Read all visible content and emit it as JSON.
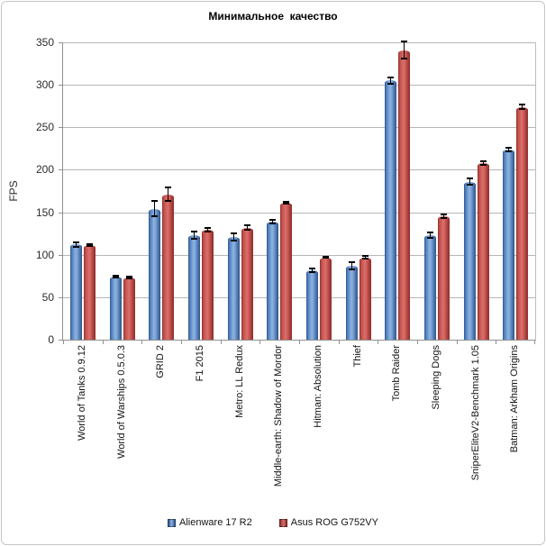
{
  "chart_data": {
    "type": "bar",
    "title": "Минимальное  качество",
    "ylabel": "FPS",
    "ylim": [
      0,
      350
    ],
    "ytick_step": 50,
    "grid": true,
    "legend_position": "bottom",
    "categories": [
      "World of Tanks 0.9.12",
      "World of Warships 0.5.0.3",
      "GRID 2",
      "F1 2015",
      "Metro: LL Redux",
      "Middle-earth: Shadow of Mordor",
      "Hitman: Absolution",
      "Thief",
      "Tomb Raider",
      "Sleeping Dogs",
      "SniperEliteV2-Benchmark 1.05",
      "Batman: Arkham Origins"
    ],
    "series": [
      {
        "name": "Alienware 17 R2",
        "color": "#4F81BD",
        "values": [
          112,
          74,
          154,
          123,
          121,
          139,
          82,
          87,
          305,
          123,
          186,
          224
        ],
        "errors": [
          3,
          1,
          9,
          4,
          4,
          2,
          2,
          4,
          4,
          3,
          4,
          2
        ]
      },
      {
        "name": "Asus ROG G752VY",
        "color": "#C0504D",
        "values": [
          111,
          73,
          171,
          129,
          132,
          161,
          97,
          97,
          341,
          145,
          208,
          274
        ],
        "errors": [
          1,
          1,
          8,
          2,
          3,
          1,
          1,
          2,
          10,
          2,
          2,
          3
        ]
      }
    ],
    "error_bar_color": "#000000",
    "gridline_color": "#b6b6b6",
    "axis_color": "#909090"
  }
}
